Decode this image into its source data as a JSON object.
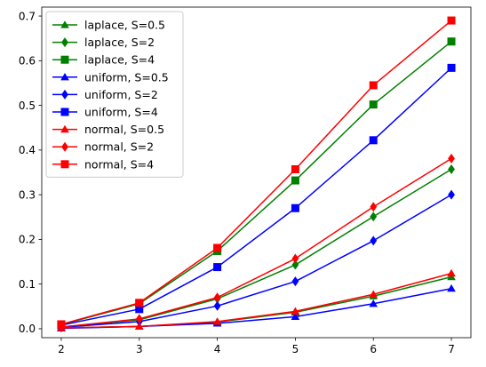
{
  "chart_data": {
    "type": "line",
    "title": "",
    "xlabel": "",
    "ylabel": "",
    "x": [
      2,
      3,
      4,
      5,
      6,
      7
    ],
    "xlim": [
      1.75,
      7.25
    ],
    "ylim": [
      -0.02,
      0.72
    ],
    "xticks": [
      2,
      3,
      4,
      5,
      6,
      7
    ],
    "yticks": [
      0.0,
      0.1,
      0.2,
      0.3,
      0.4,
      0.5,
      0.6,
      0.7
    ],
    "ytick_labels": [
      "0.0",
      "0.1",
      "0.2",
      "0.3",
      "0.4",
      "0.5",
      "0.6",
      "0.7"
    ],
    "grid": false,
    "legend_position": "top-left",
    "series": [
      {
        "name": "laplace, S=0.5",
        "color": "#008000",
        "marker": "triangle",
        "values": [
          0.002,
          0.005,
          0.015,
          0.037,
          0.073,
          0.116
        ]
      },
      {
        "name": "laplace, S=2",
        "color": "#008000",
        "marker": "diamond",
        "values": [
          0.004,
          0.02,
          0.067,
          0.143,
          0.251,
          0.357
        ]
      },
      {
        "name": "laplace, S=4",
        "color": "#008000",
        "marker": "square",
        "values": [
          0.009,
          0.056,
          0.174,
          0.332,
          0.502,
          0.643
        ]
      },
      {
        "name": "uniform, S=0.5",
        "color": "#0000ff",
        "marker": "triangle",
        "values": [
          0.001,
          0.005,
          0.012,
          0.027,
          0.056,
          0.09
        ]
      },
      {
        "name": "uniform, S=2",
        "color": "#0000ff",
        "marker": "diamond",
        "values": [
          0.003,
          0.016,
          0.051,
          0.106,
          0.197,
          0.3
        ]
      },
      {
        "name": "uniform, S=4",
        "color": "#0000ff",
        "marker": "square",
        "values": [
          0.008,
          0.044,
          0.138,
          0.27,
          0.422,
          0.584
        ]
      },
      {
        "name": "normal, S=0.5",
        "color": "#ff0000",
        "marker": "triangle",
        "values": [
          0.002,
          0.005,
          0.016,
          0.039,
          0.077,
          0.124
        ]
      },
      {
        "name": "normal, S=2",
        "color": "#ff0000",
        "marker": "diamond",
        "values": [
          0.004,
          0.022,
          0.07,
          0.157,
          0.273,
          0.381
        ]
      },
      {
        "name": "normal, S=4",
        "color": "#ff0000",
        "marker": "square",
        "values": [
          0.01,
          0.058,
          0.181,
          0.357,
          0.545,
          0.69
        ]
      }
    ]
  }
}
